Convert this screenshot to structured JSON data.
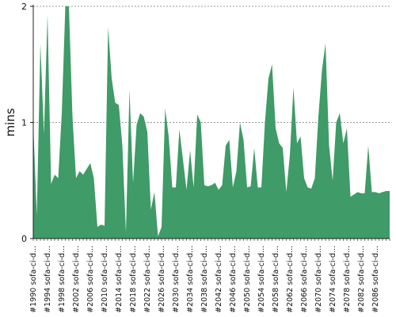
{
  "chart_data": {
    "type": "area",
    "ylabel": "mins",
    "ylim": [
      0,
      2
    ],
    "y_ticks": [
      0,
      1,
      2
    ],
    "y_tick_labels": [
      "0",
      "1",
      "2"
    ],
    "grid": {
      "y": true,
      "style": "dashed"
    },
    "colors": {
      "area": "#3f9b67",
      "grid": "#777777",
      "axis": "#222222"
    },
    "x_tick_labels": [
      "#1990 sofa-ci-d...",
      "#1994 sofa-ci-d...",
      "#1998 sofa-ci-d...",
      "#2002 sofa-ci-d...",
      "#2006 sofa-ci-d...",
      "#2010 sofa-ci-d...",
      "#2014 sofa-ci-d...",
      "#2018 sofa-ci-d...",
      "#2022 sofa-ci-d...",
      "#2026 sofa-ci-d...",
      "#2030 sofa-ci-d...",
      "#2034 sofa-ci-d...",
      "#2038 sofa-ci-d...",
      "#2042 sofa-ci-d...",
      "#2046 sofa-ci-d...",
      "#2050 sofa-ci-d...",
      "#2054 sofa-ci-d...",
      "#2058 sofa-ci-d...",
      "#2062 sofa-ci-d...",
      "#2066 sofa-ci-d...",
      "#2070 sofa-ci-d...",
      "#2074 sofa-ci-d...",
      "#2078 sofa-ci-d...",
      "#2082 sofa-ci-d...",
      "#2086 sofa-ci-d..."
    ],
    "x_tick_every": 4,
    "series": [
      {
        "values": [
          0.98,
          0.2,
          1.68,
          0.9,
          1.93,
          0.47,
          0.55,
          0.52,
          1.08,
          2.05,
          2.05,
          1.05,
          0.52,
          0.58,
          0.55,
          0.6,
          0.65,
          0.52,
          0.1,
          0.12,
          0.11,
          1.82,
          1.38,
          1.17,
          1.15,
          0.8,
          0.05,
          1.28,
          0.48,
          0.98,
          1.08,
          1.05,
          0.92,
          0.25,
          0.4,
          0.02,
          0.1,
          1.12,
          0.88,
          0.44,
          0.44,
          0.94,
          0.68,
          0.42,
          0.76,
          0.44,
          1.07,
          1.0,
          0.46,
          0.45,
          0.46,
          0.48,
          0.42,
          0.46,
          0.8,
          0.85,
          0.44,
          0.58,
          1.0,
          0.85,
          0.44,
          0.45,
          0.78,
          0.44,
          0.44,
          1.0,
          1.38,
          1.5,
          0.95,
          0.82,
          0.78,
          0.4,
          0.72,
          1.3,
          0.82,
          0.88,
          0.52,
          0.44,
          0.43,
          0.52,
          1.05,
          1.45,
          1.68,
          0.8,
          0.5,
          1.0,
          1.08,
          0.82,
          0.95,
          0.36,
          0.38,
          0.4,
          0.39,
          0.39,
          0.8,
          0.4,
          0.4,
          0.39,
          0.4,
          0.41,
          0.41
        ]
      }
    ]
  }
}
